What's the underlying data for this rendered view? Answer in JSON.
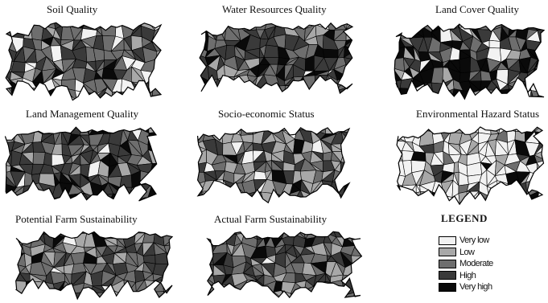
{
  "panels": [
    {
      "id": "soil",
      "title": "Soil Quality",
      "mix": [
        0.14,
        0.16,
        0.35,
        0.25,
        0.1
      ]
    },
    {
      "id": "water",
      "title": "Water Resources Quality",
      "mix": [
        0.02,
        0.1,
        0.38,
        0.38,
        0.12
      ]
    },
    {
      "id": "landcover",
      "title": "Land Cover Quality",
      "mix": [
        0.1,
        0.12,
        0.18,
        0.28,
        0.32
      ]
    },
    {
      "id": "landmgmt",
      "title": "Land Management Quality",
      "mix": [
        0.04,
        0.1,
        0.28,
        0.36,
        0.22
      ]
    },
    {
      "id": "socio",
      "title": "Socio-economic Status",
      "mix": [
        0.1,
        0.34,
        0.26,
        0.22,
        0.08
      ]
    },
    {
      "id": "hazard",
      "title": "Environmental Hazard Status",
      "mix": [
        0.52,
        0.26,
        0.12,
        0.06,
        0.04
      ]
    },
    {
      "id": "potential",
      "title": "Potential Farm Sustainability",
      "mix": [
        0.02,
        0.24,
        0.44,
        0.24,
        0.06
      ]
    },
    {
      "id": "actual",
      "title": "Actual Farm Sustainability",
      "mix": [
        0.01,
        0.14,
        0.4,
        0.37,
        0.08
      ]
    }
  ],
  "legend": {
    "title": "LEGEND",
    "items": [
      {
        "label": "Very low",
        "color": "#f2f2f2"
      },
      {
        "label": "Low",
        "color": "#a8a8a8"
      },
      {
        "label": "Moderate",
        "color": "#6e6e6e"
      },
      {
        "label": "High",
        "color": "#3a3a3a"
      },
      {
        "label": "Very high",
        "color": "#0a0a0a"
      }
    ]
  }
}
